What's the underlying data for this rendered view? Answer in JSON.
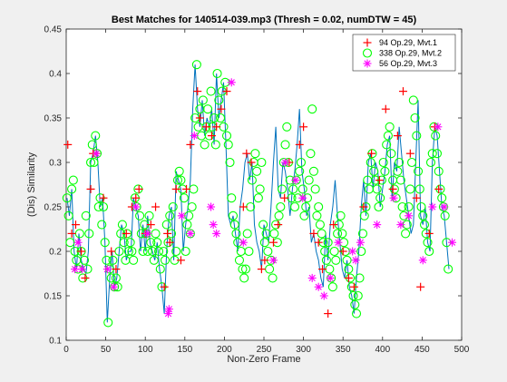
{
  "chart_data": {
    "type": "scatter",
    "title": "Best Matches for 140514-039.mp3 (Thresh = 0.02, numDTW = 45)",
    "xlabel": "Non-Zero Frame",
    "ylabel": "(Dis) Similarity",
    "xlim": [
      0,
      500
    ],
    "ylim": [
      0.1,
      0.45
    ],
    "xticks": [
      0,
      50,
      100,
      150,
      200,
      250,
      300,
      350,
      400,
      450,
      500
    ],
    "yticks": [
      0.1,
      0.15,
      0.2,
      0.25,
      0.3,
      0.35,
      0.4,
      0.45
    ],
    "xtick_labels": [
      "0",
      "50",
      "100",
      "150",
      "200",
      "250",
      "300",
      "350",
      "400",
      "450",
      "500"
    ],
    "ytick_labels": [
      "0.1",
      "0.15",
      "0.2",
      "0.25",
      "0.3",
      "0.35",
      "0.4",
      "0.45"
    ],
    "grid": false,
    "legend_position": "top-right",
    "line_color": "#0072bd",
    "line": {
      "x": [
        1,
        4,
        7,
        10,
        13,
        16,
        19,
        22,
        25,
        28,
        31,
        34,
        37,
        40,
        43,
        46,
        49,
        52,
        55,
        58,
        61,
        64,
        67,
        70,
        73,
        76,
        79,
        82,
        85,
        88,
        91,
        94,
        97,
        100,
        103,
        106,
        109,
        112,
        115,
        118,
        121,
        124,
        127,
        130,
        133,
        136,
        139,
        142,
        145,
        148,
        151,
        154,
        157,
        160,
        163,
        166,
        169,
        172,
        175,
        178,
        181,
        184,
        187,
        190,
        193,
        196,
        199,
        202,
        205,
        208,
        211,
        214,
        217,
        220,
        223,
        226,
        229,
        232,
        235,
        238,
        241,
        244,
        247,
        250,
        253,
        256,
        259,
        262,
        265,
        268,
        271,
        274,
        277,
        280,
        283,
        286,
        289,
        292,
        295,
        298,
        301,
        304,
        307,
        310,
        313,
        316,
        319,
        322,
        325,
        328,
        331,
        334,
        337,
        340,
        343,
        346,
        349,
        352,
        355,
        358,
        361,
        364,
        367,
        370,
        373,
        376,
        379,
        382,
        385,
        388,
        391,
        394,
        397,
        400,
        403,
        406,
        409,
        412,
        415,
        418,
        421,
        424,
        427,
        430,
        433,
        436,
        439,
        442,
        445,
        448,
        451,
        454,
        457,
        460,
        463,
        466,
        469,
        472,
        475,
        478,
        481,
        484
      ],
      "y": [
        0.26,
        0.24,
        0.27,
        0.2,
        0.18,
        0.22,
        0.19,
        0.18,
        0.175,
        0.2,
        0.3,
        0.31,
        0.33,
        0.3,
        0.25,
        0.26,
        0.21,
        0.12,
        0.17,
        0.2,
        0.16,
        0.17,
        0.2,
        0.23,
        0.22,
        0.19,
        0.2,
        0.2,
        0.26,
        0.25,
        0.24,
        0.2,
        0.23,
        0.2,
        0.24,
        0.21,
        0.2,
        0.19,
        0.21,
        0.18,
        0.16,
        0.13,
        0.2,
        0.24,
        0.25,
        0.19,
        0.29,
        0.28,
        0.27,
        0.2,
        0.23,
        0.25,
        0.28,
        0.36,
        0.41,
        0.36,
        0.34,
        0.37,
        0.33,
        0.35,
        0.34,
        0.36,
        0.32,
        0.4,
        0.35,
        0.37,
        0.39,
        0.32,
        0.24,
        0.23,
        0.24,
        0.22,
        0.2,
        0.25,
        0.27,
        0.3,
        0.31,
        0.28,
        0.3,
        0.23,
        0.21,
        0.2,
        0.18,
        0.23,
        0.22,
        0.21,
        0.25,
        0.3,
        0.34,
        0.27,
        0.26,
        0.3,
        0.29,
        0.27,
        0.24,
        0.27,
        0.29,
        0.32,
        0.36,
        0.29,
        0.27,
        0.24,
        0.25,
        0.21,
        0.22,
        0.2,
        0.19,
        0.17,
        0.16,
        0.22,
        0.19,
        0.23,
        0.25,
        0.28,
        0.24,
        0.21,
        0.18,
        0.17,
        0.19,
        0.16,
        0.15,
        0.13,
        0.17,
        0.2,
        0.25,
        0.28,
        0.24,
        0.3,
        0.31,
        0.27,
        0.3,
        0.29,
        0.25,
        0.27,
        0.29,
        0.32,
        0.33,
        0.26,
        0.3,
        0.29,
        0.34,
        0.31,
        0.28,
        0.26,
        0.24,
        0.22,
        0.23,
        0.3,
        0.37,
        0.24,
        0.23,
        0.25,
        0.21,
        0.2,
        0.3,
        0.34,
        0.33,
        0.29,
        0.25,
        0.24,
        0.21,
        0.18
      ]
    },
    "series": [
      {
        "name": "94 Op.29, Mvt.1",
        "marker": "plus",
        "color": "#ff0000",
        "x": [
          2,
          7,
          12,
          19,
          24,
          31,
          34,
          38,
          47,
          57,
          63,
          76,
          83,
          88,
          92,
          100,
          107,
          113,
          124,
          128,
          131,
          139,
          145,
          152,
          157,
          166,
          169,
          177,
          184,
          190,
          196,
          203,
          224,
          228,
          234,
          247,
          251,
          262,
          268,
          276,
          282,
          295,
          300,
          313,
          319,
          324,
          331,
          338,
          350,
          357,
          364,
          376,
          386,
          396,
          404,
          413,
          419,
          426,
          435,
          443,
          448,
          459,
          466,
          471
        ],
        "y": [
          0.32,
          0.22,
          0.23,
          0.2,
          0.17,
          0.27,
          0.31,
          0.31,
          0.26,
          0.2,
          0.18,
          0.22,
          0.25,
          0.26,
          0.27,
          0.22,
          0.23,
          0.25,
          0.16,
          0.22,
          0.21,
          0.27,
          0.19,
          0.27,
          0.32,
          0.38,
          0.35,
          0.34,
          0.33,
          0.34,
          0.36,
          0.38,
          0.25,
          0.31,
          0.3,
          0.18,
          0.19,
          0.21,
          0.23,
          0.26,
          0.3,
          0.32,
          0.34,
          0.22,
          0.21,
          0.18,
          0.13,
          0.23,
          0.2,
          0.17,
          0.16,
          0.25,
          0.31,
          0.28,
          0.36,
          0.27,
          0.33,
          0.38,
          0.31,
          0.26,
          0.16,
          0.22,
          0.34,
          0.27
        ]
      },
      {
        "name": "338 Op.29, Mvt.2",
        "marker": "circle",
        "color": "#00ff00",
        "x": [
          1,
          3,
          5,
          7,
          9,
          11,
          13,
          15,
          17,
          19,
          21,
          23,
          25,
          27,
          29,
          31,
          33,
          35,
          37,
          39,
          41,
          43,
          45,
          47,
          49,
          51,
          53,
          55,
          57,
          59,
          61,
          63,
          65,
          67,
          69,
          71,
          73,
          75,
          77,
          79,
          81,
          83,
          85,
          87,
          89,
          91,
          93,
          95,
          97,
          99,
          101,
          103,
          105,
          107,
          109,
          111,
          113,
          115,
          117,
          119,
          121,
          123,
          125,
          127,
          129,
          131,
          133,
          135,
          137,
          139,
          141,
          143,
          145,
          147,
          149,
          151,
          153,
          155,
          157,
          159,
          161,
          163,
          165,
          167,
          169,
          171,
          173,
          175,
          177,
          179,
          181,
          183,
          185,
          187,
          189,
          191,
          193,
          195,
          197,
          199,
          201,
          203,
          205,
          207,
          209,
          211,
          213,
          215,
          217,
          219,
          221,
          223,
          225,
          227,
          229,
          231,
          233,
          235,
          237,
          239,
          241,
          243,
          245,
          247,
          249,
          251,
          253,
          255,
          257,
          259,
          261,
          263,
          265,
          267,
          269,
          271,
          273,
          275,
          277,
          279,
          281,
          283,
          285,
          287,
          289,
          291,
          293,
          295,
          297,
          299,
          301,
          303,
          305,
          307,
          309,
          311,
          313,
          315,
          317,
          319,
          321,
          323,
          325,
          327,
          329,
          331,
          333,
          335,
          337,
          339,
          341,
          343,
          345,
          347,
          349,
          351,
          353,
          355,
          357,
          359,
          361,
          363,
          365,
          367,
          369,
          371,
          373,
          375,
          377,
          379,
          381,
          383,
          385,
          387,
          389,
          391,
          393,
          395,
          397,
          399,
          401,
          403,
          405,
          407,
          409,
          411,
          413,
          415,
          417,
          419,
          421,
          423,
          425,
          427,
          429,
          431,
          433,
          435,
          437,
          439,
          441,
          443,
          445,
          447,
          449,
          451,
          453,
          455,
          457,
          459,
          461,
          463,
          465,
          467,
          469,
          471,
          473,
          475,
          477,
          479,
          481,
          483
        ],
        "y": [
          0.26,
          0.24,
          0.21,
          0.27,
          0.28,
          0.2,
          0.19,
          0.18,
          0.22,
          0.2,
          0.17,
          0.19,
          0.24,
          0.18,
          0.22,
          0.3,
          0.32,
          0.3,
          0.33,
          0.31,
          0.25,
          0.26,
          0.23,
          0.25,
          0.21,
          0.19,
          0.12,
          0.18,
          0.17,
          0.19,
          0.16,
          0.17,
          0.16,
          0.2,
          0.22,
          0.23,
          0.21,
          0.19,
          0.22,
          0.2,
          0.21,
          0.2,
          0.19,
          0.26,
          0.25,
          0.27,
          0.24,
          0.22,
          0.2,
          0.23,
          0.22,
          0.2,
          0.24,
          0.21,
          0.2,
          0.19,
          0.22,
          0.21,
          0.2,
          0.18,
          0.16,
          0.2,
          0.19,
          0.23,
          0.21,
          0.24,
          0.22,
          0.25,
          0.19,
          0.2,
          0.28,
          0.29,
          0.28,
          0.27,
          0.26,
          0.2,
          0.23,
          0.24,
          0.22,
          0.25,
          0.27,
          0.35,
          0.41,
          0.34,
          0.36,
          0.33,
          0.37,
          0.32,
          0.34,
          0.36,
          0.33,
          0.38,
          0.34,
          0.35,
          0.32,
          0.4,
          0.37,
          0.35,
          0.38,
          0.34,
          0.39,
          0.33,
          0.32,
          0.3,
          0.26,
          0.24,
          0.23,
          0.22,
          0.21,
          0.19,
          0.2,
          0.18,
          0.17,
          0.18,
          0.22,
          0.2,
          0.25,
          0.28,
          0.3,
          0.31,
          0.29,
          0.26,
          0.27,
          0.3,
          0.23,
          0.21,
          0.22,
          0.2,
          0.18,
          0.19,
          0.17,
          0.22,
          0.23,
          0.21,
          0.24,
          0.25,
          0.27,
          0.3,
          0.32,
          0.34,
          0.3,
          0.28,
          0.26,
          0.27,
          0.25,
          0.28,
          0.26,
          0.29,
          0.3,
          0.27,
          0.24,
          0.25,
          0.26,
          0.28,
          0.31,
          0.36,
          0.29,
          0.27,
          0.24,
          0.25,
          0.23,
          0.22,
          0.21,
          0.2,
          0.19,
          0.21,
          0.18,
          0.17,
          0.16,
          0.2,
          0.19,
          0.22,
          0.23,
          0.24,
          0.22,
          0.21,
          0.2,
          0.19,
          0.18,
          0.17,
          0.16,
          0.15,
          0.14,
          0.13,
          0.15,
          0.17,
          0.2,
          0.22,
          0.24,
          0.25,
          0.28,
          0.27,
          0.3,
          0.31,
          0.29,
          0.28,
          0.27,
          0.25,
          0.26,
          0.28,
          0.3,
          0.29,
          0.32,
          0.33,
          0.34,
          0.31,
          0.28,
          0.27,
          0.26,
          0.29,
          0.3,
          0.28,
          0.25,
          0.24,
          0.22,
          0.23,
          0.25,
          0.27,
          0.3,
          0.37,
          0.35,
          0.33,
          0.29,
          0.27,
          0.25,
          0.24,
          0.23,
          0.22,
          0.21,
          0.2,
          0.3,
          0.31,
          0.34,
          0.33,
          0.31,
          0.29,
          0.27,
          0.26,
          0.25,
          0.24,
          0.21,
          0.18
        ]
      },
      {
        "name": "56 Op.29, Mvt.3",
        "marker": "asterisk",
        "color": "#ff00ff",
        "x": [
          11,
          15,
          20,
          38,
          52,
          60,
          88,
          103,
          129,
          130,
          146,
          157,
          162,
          183,
          186,
          190,
          209,
          224,
          262,
          277,
          290,
          299,
          311,
          319,
          326,
          334,
          344,
          362,
          366,
          372,
          393,
          414,
          423,
          433,
          451,
          463,
          470,
          478,
          488
        ],
        "y": [
          0.18,
          0.21,
          0.18,
          0.31,
          0.18,
          0.16,
          0.25,
          0.22,
          0.13,
          0.135,
          0.24,
          0.22,
          0.33,
          0.25,
          0.23,
          0.22,
          0.39,
          0.21,
          0.19,
          0.3,
          0.28,
          0.26,
          0.17,
          0.16,
          0.15,
          0.17,
          0.21,
          0.2,
          0.19,
          0.21,
          0.23,
          0.26,
          0.23,
          0.24,
          0.19,
          0.25,
          0.34,
          0.25,
          0.21
        ]
      }
    ]
  }
}
